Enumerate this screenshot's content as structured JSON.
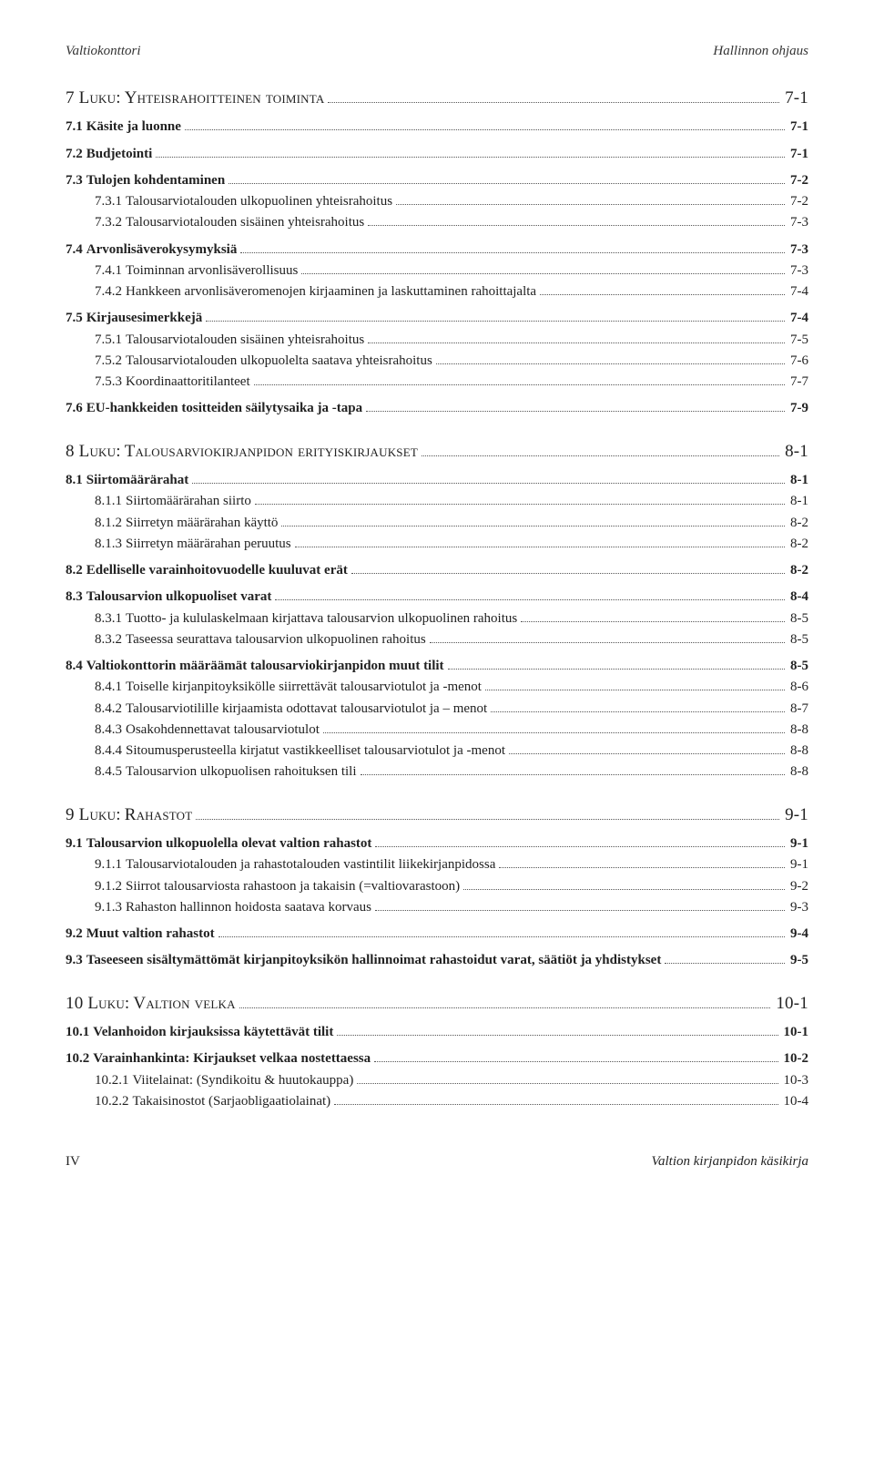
{
  "runhead_left": "Valtiokonttori",
  "runhead_right": "Hallinnon ohjaus",
  "footer_left": "IV",
  "footer_right": "Valtion kirjanpidon käsikirja",
  "toc": [
    {
      "level": "chapter",
      "num": "7 Luku:",
      "title": "Yhteisrahoitteinen toiminta",
      "page": "7-1"
    },
    {
      "level": 1,
      "num": "7.1",
      "title": "Käsite ja luonne",
      "page": "7-1"
    },
    {
      "level": 1,
      "num": "7.2",
      "title": "Budjetointi",
      "page": "7-1"
    },
    {
      "level": 1,
      "num": "7.3",
      "title": "Tulojen kohdentaminen",
      "page": "7-2"
    },
    {
      "level": 2,
      "num": "7.3.1",
      "title": "Talousarviotalouden ulkopuolinen yhteisrahoitus",
      "page": "7-2"
    },
    {
      "level": 2,
      "num": "7.3.2",
      "title": "Talousarviotalouden sisäinen yhteisrahoitus",
      "page": "7-3"
    },
    {
      "level": 1,
      "num": "7.4",
      "title": "Arvonlisäverokysymyksiä",
      "page": "7-3"
    },
    {
      "level": 2,
      "num": "7.4.1",
      "title": "Toiminnan arvonlisäverollisuus",
      "page": "7-3"
    },
    {
      "level": 2,
      "num": "7.4.2",
      "title": "Hankkeen arvonlisäveromenojen kirjaaminen ja laskuttaminen rahoittajalta",
      "page": "7-4"
    },
    {
      "level": 1,
      "num": "7.5",
      "title": "Kirjausesimerkkejä",
      "page": "7-4"
    },
    {
      "level": 2,
      "num": "7.5.1",
      "title": "Talousarviotalouden sisäinen yhteisrahoitus",
      "page": "7-5"
    },
    {
      "level": 2,
      "num": "7.5.2",
      "title": "Talousarviotalouden ulkopuolelta saatava yhteisrahoitus",
      "page": "7-6"
    },
    {
      "level": 2,
      "num": "7.5.3",
      "title": "Koordinaattoritilanteet",
      "page": "7-7"
    },
    {
      "level": 1,
      "num": "7.6",
      "title": "EU-hankkeiden tositteiden säilytysaika ja -tapa",
      "page": "7-9"
    },
    {
      "level": "chapter",
      "num": "8 Luku:",
      "title": "Talousarviokirjanpidon erityiskirjaukset",
      "page": "8-1"
    },
    {
      "level": 1,
      "num": "8.1",
      "title": "Siirtomäärärahat",
      "page": "8-1"
    },
    {
      "level": 2,
      "num": "8.1.1",
      "title": "Siirtomäärärahan siirto",
      "page": "8-1"
    },
    {
      "level": 2,
      "num": "8.1.2",
      "title": "Siirretyn määrärahan käyttö",
      "page": "8-2"
    },
    {
      "level": 2,
      "num": "8.1.3",
      "title": "Siirretyn määrärahan peruutus",
      "page": "8-2"
    },
    {
      "level": 1,
      "num": "8.2",
      "title": "Edelliselle varainhoitovuodelle kuuluvat erät",
      "page": "8-2"
    },
    {
      "level": 1,
      "num": "8.3",
      "title": "Talousarvion ulkopuoliset varat",
      "page": "8-4"
    },
    {
      "level": 2,
      "num": "8.3.1",
      "title": "Tuotto- ja kululaskelmaan kirjattava talousarvion ulkopuolinen rahoitus",
      "page": "8-5"
    },
    {
      "level": 2,
      "num": "8.3.2",
      "title": "Taseessa seurattava talousarvion ulkopuolinen rahoitus",
      "page": "8-5"
    },
    {
      "level": 1,
      "num": "8.4",
      "title": "Valtiokonttorin määräämät talousarviokirjanpidon muut tilit",
      "page": "8-5"
    },
    {
      "level": 2,
      "num": "8.4.1",
      "title": "Toiselle kirjanpitoyksikölle siirrettävät talousarviotulot ja -menot",
      "page": "8-6"
    },
    {
      "level": 2,
      "num": "8.4.2",
      "title": "Talousarviotilille kirjaamista odottavat talousarviotulot ja – menot",
      "page": "8-7"
    },
    {
      "level": 2,
      "num": "8.4.3",
      "title": "Osakohdennettavat talousarviotulot",
      "page": "8-8"
    },
    {
      "level": 2,
      "num": "8.4.4",
      "title": "Sitoumusperusteella kirjatut vastikkeelliset talousarviotulot ja -menot",
      "page": "8-8"
    },
    {
      "level": 2,
      "num": "8.4.5",
      "title": "Talousarvion ulkopuolisen rahoituksen tili",
      "page": "8-8"
    },
    {
      "level": "chapter",
      "num": "9 Luku:",
      "title": "Rahastot",
      "page": "9-1"
    },
    {
      "level": 1,
      "num": "9.1",
      "title": "Talousarvion ulkopuolella olevat valtion rahastot",
      "page": "9-1"
    },
    {
      "level": 2,
      "num": "9.1.1",
      "title": "Talousarviotalouden ja rahastotalouden vastintilit liikekirjanpidossa",
      "page": "9-1"
    },
    {
      "level": 2,
      "num": "9.1.2",
      "title": "Siirrot talousarviosta rahastoon ja takaisin (=valtiovarastoon)",
      "page": "9-2"
    },
    {
      "level": 2,
      "num": "9.1.3",
      "title": "Rahaston hallinnon hoidosta saatava korvaus",
      "page": "9-3"
    },
    {
      "level": 1,
      "num": "9.2",
      "title": "Muut valtion rahastot",
      "page": "9-4"
    },
    {
      "level": 1,
      "num": "9.3",
      "title": "Taseeseen sisältymättömät kirjanpitoyksikön hallinnoimat rahastoidut varat, säätiöt ja yhdistykset",
      "page": "9-5"
    },
    {
      "level": "chapter",
      "num": "10 Luku:",
      "title": "Valtion velka",
      "page": "10-1"
    },
    {
      "level": 1,
      "num": "10.1",
      "title": "Velanhoidon kirjauksissa käytettävät tilit",
      "page": "10-1"
    },
    {
      "level": 1,
      "num": "10.2",
      "title": "Varainhankinta: Kirjaukset velkaa nostettaessa",
      "page": "10-2"
    },
    {
      "level": 2,
      "num": "10.2.1",
      "title": "Viitelainat: (Syndikoitu & huutokauppa)",
      "page": "10-3"
    },
    {
      "level": 2,
      "num": "10.2.2",
      "title": "Takaisinostot (Sarjaobligaatiolainat)",
      "page": "10-4"
    }
  ]
}
